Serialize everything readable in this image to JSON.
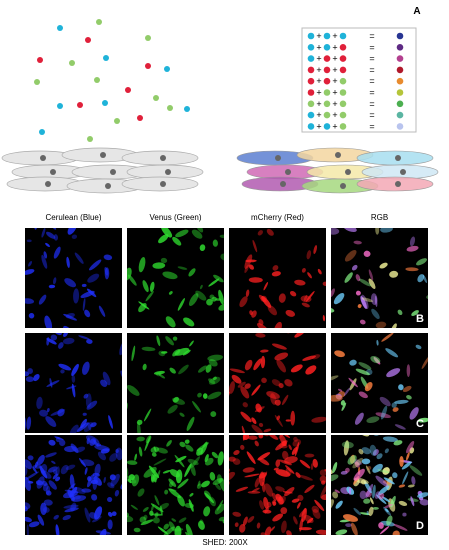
{
  "panel_a": {
    "label": "A",
    "plus": "+",
    "equals": "="
  },
  "columns": [
    "Cerulean (Blue)",
    "Venus (Green)",
    "mCherry (Red)",
    "RGB"
  ],
  "rows": [
    "B",
    "C",
    "D"
  ],
  "footer": "SHED: 200X"
}
